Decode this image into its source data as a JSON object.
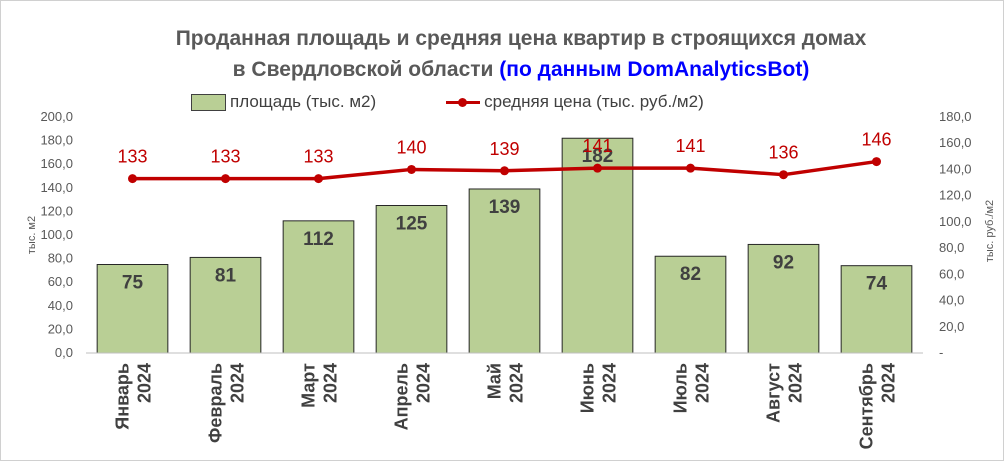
{
  "chart_data": {
    "type": "bar",
    "title_line1": "Проданная площадь и средняя цена квартир в строящихся домах",
    "title_line2_plain": "в Свердловской области",
    "title_line2_highlight": "(по данным DomAnalyticsBot)",
    "categories": [
      [
        "Январь",
        "2024"
      ],
      [
        "Февраль",
        "2024"
      ],
      [
        "Март",
        "2024"
      ],
      [
        "Апрель",
        "2024"
      ],
      [
        "Май",
        "2024"
      ],
      [
        "Июнь",
        "2024"
      ],
      [
        "Июль",
        "2024"
      ],
      [
        "Август",
        "2024"
      ],
      [
        "Сентябрь",
        "2024"
      ]
    ],
    "series": [
      {
        "name": "площадь (тыс. м2)",
        "kind": "bar",
        "axis": "left",
        "color": "#b9cf95",
        "values": [
          75,
          81,
          112,
          125,
          139,
          182,
          82,
          92,
          74
        ]
      },
      {
        "name": "средняя цена (тыс. руб./м2)",
        "kind": "line",
        "axis": "right",
        "color": "#c00000",
        "values": [
          133,
          133,
          133,
          140,
          139,
          141,
          141,
          136,
          146
        ]
      }
    ],
    "ylabel": "тыс. м2",
    "ylabel_right": "тыс. руб./м2",
    "ylim": [
      0,
      200
    ],
    "ylim_right": [
      0,
      180
    ],
    "yticks": [
      "0,0",
      "20,0",
      "40,0",
      "60,0",
      "80,0",
      "100,0",
      "120,0",
      "140,0",
      "160,0",
      "180,0",
      "200,0"
    ],
    "yticks_right": [
      "-",
      "20,0",
      "40,0",
      "60,0",
      "80,0",
      "100,0",
      "120,0",
      "140,0",
      "160,0",
      "180,0"
    ],
    "legend_position": "top",
    "grid": false
  }
}
